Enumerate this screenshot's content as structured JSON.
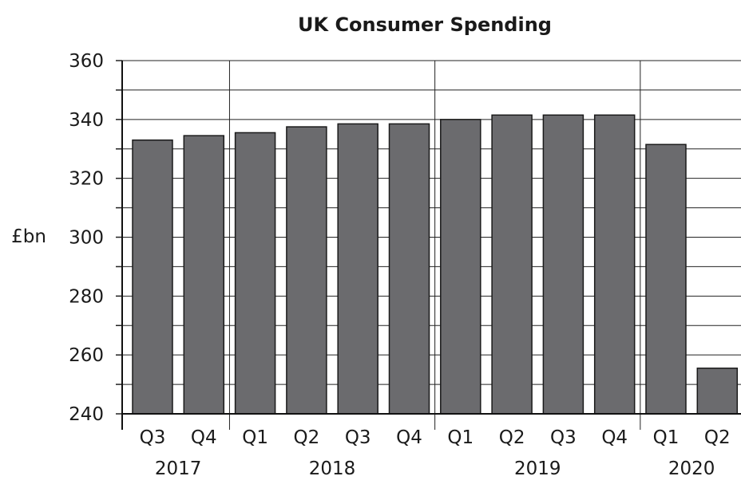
{
  "chart_data": {
    "type": "bar",
    "title": "UK Consumer Spending",
    "ylabel": "£bn",
    "xlabel": "",
    "ylim": [
      240,
      360
    ],
    "yticks": [
      240,
      260,
      280,
      300,
      320,
      340,
      360
    ],
    "grid": true,
    "categories": [
      "Q3",
      "Q4",
      "Q1",
      "Q2",
      "Q3",
      "Q4",
      "Q1",
      "Q2",
      "Q3",
      "Q4",
      "Q1",
      "Q2"
    ],
    "year_groups": [
      {
        "label": "2017",
        "count": 2
      },
      {
        "label": "2018",
        "count": 4
      },
      {
        "label": "2019",
        "count": 4
      },
      {
        "label": "2020",
        "count": 2
      }
    ],
    "values": [
      333,
      334.5,
      335.5,
      337.5,
      338.5,
      338.5,
      340,
      341.5,
      341.5,
      341.5,
      331.5,
      255.5
    ],
    "bar_color": "#6b6b6e"
  }
}
